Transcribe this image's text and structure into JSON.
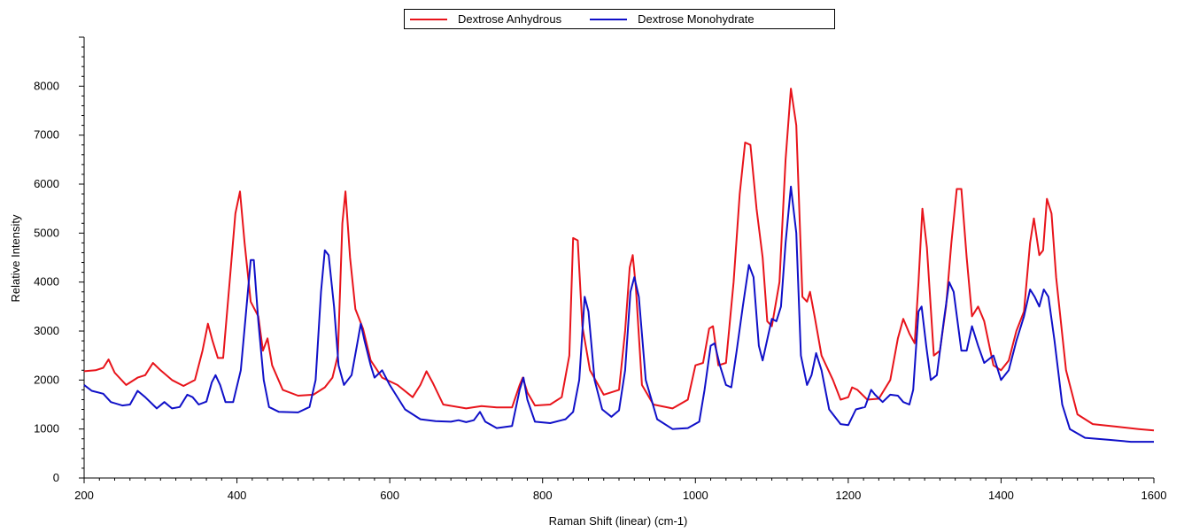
{
  "chart_data": {
    "type": "line",
    "title": "",
    "xlabel": "Raman Shift (linear) (cm-1)",
    "ylabel": "Relative Intensity",
    "xlim": [
      200,
      1600
    ],
    "ylim": [
      0,
      9000
    ],
    "xticks": [
      200,
      400,
      600,
      800,
      1000,
      1200,
      1400,
      1600
    ],
    "yticks": [
      0,
      1000,
      2000,
      3000,
      4000,
      5000,
      6000,
      7000,
      8000
    ],
    "grid": false,
    "legend_position": "top-center",
    "series": [
      {
        "name": "Dextrose Anhydrous",
        "color": "#e8141b",
        "points": [
          [
            200,
            2180
          ],
          [
            215,
            2200
          ],
          [
            225,
            2250
          ],
          [
            232,
            2420
          ],
          [
            240,
            2150
          ],
          [
            255,
            1900
          ],
          [
            270,
            2050
          ],
          [
            280,
            2100
          ],
          [
            290,
            2350
          ],
          [
            300,
            2200
          ],
          [
            315,
            2000
          ],
          [
            330,
            1880
          ],
          [
            345,
            2000
          ],
          [
            355,
            2600
          ],
          [
            362,
            3150
          ],
          [
            368,
            2800
          ],
          [
            375,
            2450
          ],
          [
            382,
            2450
          ],
          [
            392,
            4300
          ],
          [
            398,
            5400
          ],
          [
            404,
            5850
          ],
          [
            410,
            4800
          ],
          [
            418,
            3600
          ],
          [
            428,
            3300
          ],
          [
            434,
            2600
          ],
          [
            440,
            2850
          ],
          [
            446,
            2300
          ],
          [
            460,
            1800
          ],
          [
            480,
            1680
          ],
          [
            500,
            1700
          ],
          [
            515,
            1850
          ],
          [
            525,
            2050
          ],
          [
            532,
            2500
          ],
          [
            538,
            5200
          ],
          [
            542,
            5850
          ],
          [
            548,
            4500
          ],
          [
            555,
            3450
          ],
          [
            565,
            3050
          ],
          [
            575,
            2400
          ],
          [
            590,
            2050
          ],
          [
            610,
            1900
          ],
          [
            630,
            1650
          ],
          [
            640,
            1900
          ],
          [
            648,
            2180
          ],
          [
            656,
            1950
          ],
          [
            670,
            1500
          ],
          [
            700,
            1420
          ],
          [
            720,
            1470
          ],
          [
            740,
            1440
          ],
          [
            760,
            1440
          ],
          [
            770,
            1900
          ],
          [
            774,
            2050
          ],
          [
            780,
            1750
          ],
          [
            790,
            1480
          ],
          [
            810,
            1500
          ],
          [
            825,
            1650
          ],
          [
            835,
            2500
          ],
          [
            840,
            4900
          ],
          [
            846,
            4850
          ],
          [
            852,
            3100
          ],
          [
            862,
            2200
          ],
          [
            880,
            1700
          ],
          [
            900,
            1800
          ],
          [
            908,
            3000
          ],
          [
            914,
            4300
          ],
          [
            918,
            4550
          ],
          [
            922,
            3900
          ],
          [
            930,
            1900
          ],
          [
            945,
            1500
          ],
          [
            970,
            1420
          ],
          [
            990,
            1600
          ],
          [
            1000,
            2300
          ],
          [
            1010,
            2350
          ],
          [
            1018,
            3050
          ],
          [
            1023,
            3100
          ],
          [
            1030,
            2300
          ],
          [
            1040,
            2350
          ],
          [
            1050,
            4000
          ],
          [
            1058,
            5800
          ],
          [
            1065,
            6850
          ],
          [
            1072,
            6800
          ],
          [
            1080,
            5500
          ],
          [
            1088,
            4500
          ],
          [
            1094,
            3200
          ],
          [
            1100,
            3100
          ],
          [
            1110,
            4000
          ],
          [
            1118,
            6500
          ],
          [
            1125,
            7950
          ],
          [
            1132,
            7200
          ],
          [
            1140,
            3700
          ],
          [
            1146,
            3600
          ],
          [
            1150,
            3800
          ],
          [
            1156,
            3300
          ],
          [
            1165,
            2500
          ],
          [
            1180,
            2000
          ],
          [
            1190,
            1600
          ],
          [
            1200,
            1650
          ],
          [
            1205,
            1850
          ],
          [
            1212,
            1800
          ],
          [
            1225,
            1600
          ],
          [
            1240,
            1620
          ],
          [
            1255,
            2000
          ],
          [
            1265,
            2850
          ],
          [
            1272,
            3250
          ],
          [
            1280,
            2950
          ],
          [
            1287,
            2750
          ],
          [
            1292,
            4000
          ],
          [
            1297,
            5500
          ],
          [
            1303,
            4700
          ],
          [
            1312,
            2500
          ],
          [
            1320,
            2600
          ],
          [
            1328,
            3500
          ],
          [
            1335,
            4800
          ],
          [
            1342,
            5900
          ],
          [
            1348,
            5900
          ],
          [
            1355,
            4500
          ],
          [
            1362,
            3300
          ],
          [
            1370,
            3500
          ],
          [
            1378,
            3200
          ],
          [
            1390,
            2300
          ],
          [
            1400,
            2200
          ],
          [
            1410,
            2400
          ],
          [
            1420,
            3000
          ],
          [
            1430,
            3400
          ],
          [
            1438,
            4800
          ],
          [
            1443,
            5300
          ],
          [
            1450,
            4550
          ],
          [
            1455,
            4650
          ],
          [
            1460,
            5700
          ],
          [
            1466,
            5400
          ],
          [
            1472,
            4100
          ],
          [
            1485,
            2200
          ],
          [
            1500,
            1300
          ],
          [
            1520,
            1100
          ],
          [
            1550,
            1050
          ],
          [
            1580,
            1000
          ],
          [
            1600,
            970
          ]
        ]
      },
      {
        "name": "Dextrose Monohydrate",
        "color": "#1010c8",
        "points": [
          [
            200,
            1900
          ],
          [
            210,
            1780
          ],
          [
            225,
            1720
          ],
          [
            235,
            1550
          ],
          [
            250,
            1480
          ],
          [
            260,
            1500
          ],
          [
            270,
            1780
          ],
          [
            280,
            1650
          ],
          [
            295,
            1420
          ],
          [
            305,
            1550
          ],
          [
            315,
            1420
          ],
          [
            325,
            1450
          ],
          [
            335,
            1700
          ],
          [
            342,
            1650
          ],
          [
            350,
            1500
          ],
          [
            360,
            1560
          ],
          [
            367,
            1950
          ],
          [
            372,
            2100
          ],
          [
            378,
            1900
          ],
          [
            385,
            1550
          ],
          [
            395,
            1550
          ],
          [
            405,
            2200
          ],
          [
            412,
            3400
          ],
          [
            418,
            4450
          ],
          [
            422,
            4450
          ],
          [
            428,
            3200
          ],
          [
            435,
            2000
          ],
          [
            442,
            1450
          ],
          [
            455,
            1350
          ],
          [
            480,
            1340
          ],
          [
            495,
            1450
          ],
          [
            503,
            2000
          ],
          [
            510,
            3800
          ],
          [
            515,
            4650
          ],
          [
            520,
            4550
          ],
          [
            527,
            3500
          ],
          [
            533,
            2300
          ],
          [
            540,
            1900
          ],
          [
            550,
            2100
          ],
          [
            557,
            2700
          ],
          [
            562,
            3150
          ],
          [
            567,
            2800
          ],
          [
            575,
            2300
          ],
          [
            580,
            2050
          ],
          [
            590,
            2200
          ],
          [
            600,
            1900
          ],
          [
            620,
            1400
          ],
          [
            640,
            1200
          ],
          [
            660,
            1160
          ],
          [
            680,
            1150
          ],
          [
            690,
            1180
          ],
          [
            700,
            1140
          ],
          [
            710,
            1180
          ],
          [
            718,
            1350
          ],
          [
            725,
            1150
          ],
          [
            740,
            1020
          ],
          [
            760,
            1060
          ],
          [
            770,
            1800
          ],
          [
            775,
            2050
          ],
          [
            780,
            1600
          ],
          [
            790,
            1150
          ],
          [
            810,
            1120
          ],
          [
            830,
            1200
          ],
          [
            840,
            1350
          ],
          [
            848,
            2000
          ],
          [
            855,
            3700
          ],
          [
            860,
            3400
          ],
          [
            868,
            2000
          ],
          [
            878,
            1400
          ],
          [
            890,
            1250
          ],
          [
            900,
            1380
          ],
          [
            908,
            2200
          ],
          [
            915,
            3800
          ],
          [
            920,
            4100
          ],
          [
            926,
            3700
          ],
          [
            935,
            2000
          ],
          [
            950,
            1200
          ],
          [
            970,
            1000
          ],
          [
            990,
            1020
          ],
          [
            1005,
            1150
          ],
          [
            1012,
            1800
          ],
          [
            1020,
            2700
          ],
          [
            1025,
            2750
          ],
          [
            1032,
            2300
          ],
          [
            1040,
            1900
          ],
          [
            1047,
            1850
          ],
          [
            1054,
            2600
          ],
          [
            1062,
            3500
          ],
          [
            1070,
            4350
          ],
          [
            1076,
            4100
          ],
          [
            1083,
            2700
          ],
          [
            1088,
            2400
          ],
          [
            1095,
            2900
          ],
          [
            1100,
            3250
          ],
          [
            1106,
            3200
          ],
          [
            1112,
            3500
          ],
          [
            1118,
            4800
          ],
          [
            1125,
            5950
          ],
          [
            1132,
            5000
          ],
          [
            1138,
            2500
          ],
          [
            1146,
            1900
          ],
          [
            1152,
            2100
          ],
          [
            1158,
            2550
          ],
          [
            1165,
            2200
          ],
          [
            1175,
            1400
          ],
          [
            1190,
            1100
          ],
          [
            1200,
            1080
          ],
          [
            1210,
            1400
          ],
          [
            1222,
            1450
          ],
          [
            1230,
            1800
          ],
          [
            1235,
            1700
          ],
          [
            1245,
            1550
          ],
          [
            1255,
            1700
          ],
          [
            1265,
            1680
          ],
          [
            1272,
            1550
          ],
          [
            1280,
            1500
          ],
          [
            1285,
            1800
          ],
          [
            1292,
            3400
          ],
          [
            1296,
            3500
          ],
          [
            1302,
            2700
          ],
          [
            1308,
            2000
          ],
          [
            1316,
            2100
          ],
          [
            1325,
            3200
          ],
          [
            1332,
            4000
          ],
          [
            1338,
            3800
          ],
          [
            1348,
            2600
          ],
          [
            1355,
            2600
          ],
          [
            1362,
            3100
          ],
          [
            1370,
            2700
          ],
          [
            1378,
            2350
          ],
          [
            1390,
            2500
          ],
          [
            1400,
            2000
          ],
          [
            1410,
            2200
          ],
          [
            1420,
            2800
          ],
          [
            1430,
            3300
          ],
          [
            1438,
            3850
          ],
          [
            1444,
            3700
          ],
          [
            1450,
            3500
          ],
          [
            1456,
            3850
          ],
          [
            1462,
            3700
          ],
          [
            1470,
            2800
          ],
          [
            1480,
            1500
          ],
          [
            1490,
            1000
          ],
          [
            1510,
            820
          ],
          [
            1540,
            780
          ],
          [
            1570,
            740
          ],
          [
            1600,
            740
          ]
        ]
      }
    ]
  }
}
